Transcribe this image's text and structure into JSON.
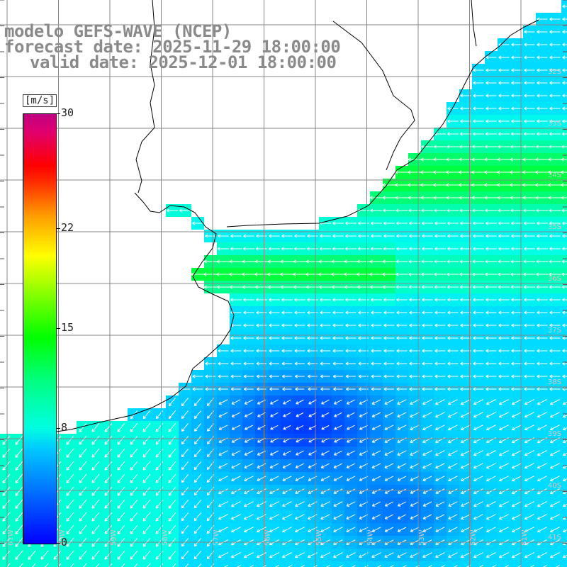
{
  "title": {
    "line1": "modelo GEFS-WAVE (NCEP)",
    "line2": "forecast date: 2025-11-29 18:00:00",
    "line3": "valid date: 2025-12-01 18:00:00"
  },
  "colorbar": {
    "unit": "[m/s]",
    "ticks": [
      {
        "label": "30",
        "value": 30
      },
      {
        "label": "22",
        "value": 22
      },
      {
        "label": "15",
        "value": 15
      },
      {
        "label": "8",
        "value": 8
      },
      {
        "label": "0",
        "value": 0
      }
    ]
  },
  "lat_labels": [
    "32S",
    "33S",
    "34S",
    "35S",
    "36S",
    "37S",
    "38S",
    "39S",
    "40S",
    "41S"
  ],
  "lon_labels": [
    "61W",
    "60W",
    "59W",
    "58W",
    "57W",
    "56W",
    "55W",
    "54W",
    "53W",
    "52W",
    "51W"
  ],
  "colors": {
    "land": "#ffffff",
    "grid": "#888888",
    "coast": "#000000",
    "arrow": "#ffffff",
    "title": "#8a8a8a"
  }
}
